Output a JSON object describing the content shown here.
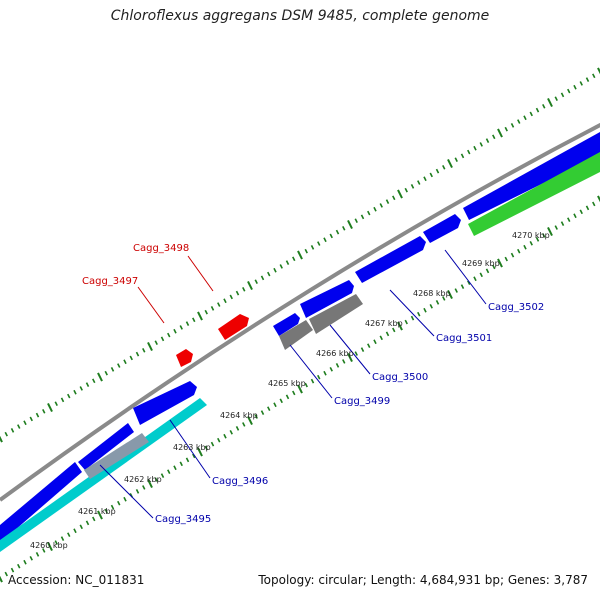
{
  "title": "Chloroflexus aggregans DSM 9485, complete genome",
  "footer": {
    "accession": "Accession: NC_011831",
    "summary": "Topology: circular; Length: 4,684,931 bp; Genes: 3,787"
  },
  "colors": {
    "backbone": "#8a8a8a",
    "tick": "#1e7d1e",
    "cds_forward": "#0000ee",
    "cds_reverse": "#ee0000",
    "rna": "#777777",
    "feature_green": "#33cc33",
    "feature_cyan": "#00cccc",
    "label_forward": "#0000aa",
    "label_reverse": "#cc0000"
  },
  "scale_labels": [
    "4260 kbp",
    "4261 kbp",
    "4262 kbp",
    "4263 kbp",
    "4264 kbp",
    "4265 kbp",
    "4266 kbp",
    "4267 kbp",
    "4268 kbp",
    "4269 kbp",
    "4270 kbp"
  ],
  "gene_labels": [
    {
      "text": "Cagg_3495",
      "strand": "forward"
    },
    {
      "text": "Cagg_3496",
      "strand": "forward"
    },
    {
      "text": "Cagg_3497",
      "strand": "reverse"
    },
    {
      "text": "Cagg_3498",
      "strand": "reverse"
    },
    {
      "text": "Cagg_3499",
      "strand": "forward"
    },
    {
      "text": "Cagg_3500",
      "strand": "forward"
    },
    {
      "text": "Cagg_3501",
      "strand": "forward"
    },
    {
      "text": "Cagg_3502",
      "strand": "forward"
    }
  ]
}
